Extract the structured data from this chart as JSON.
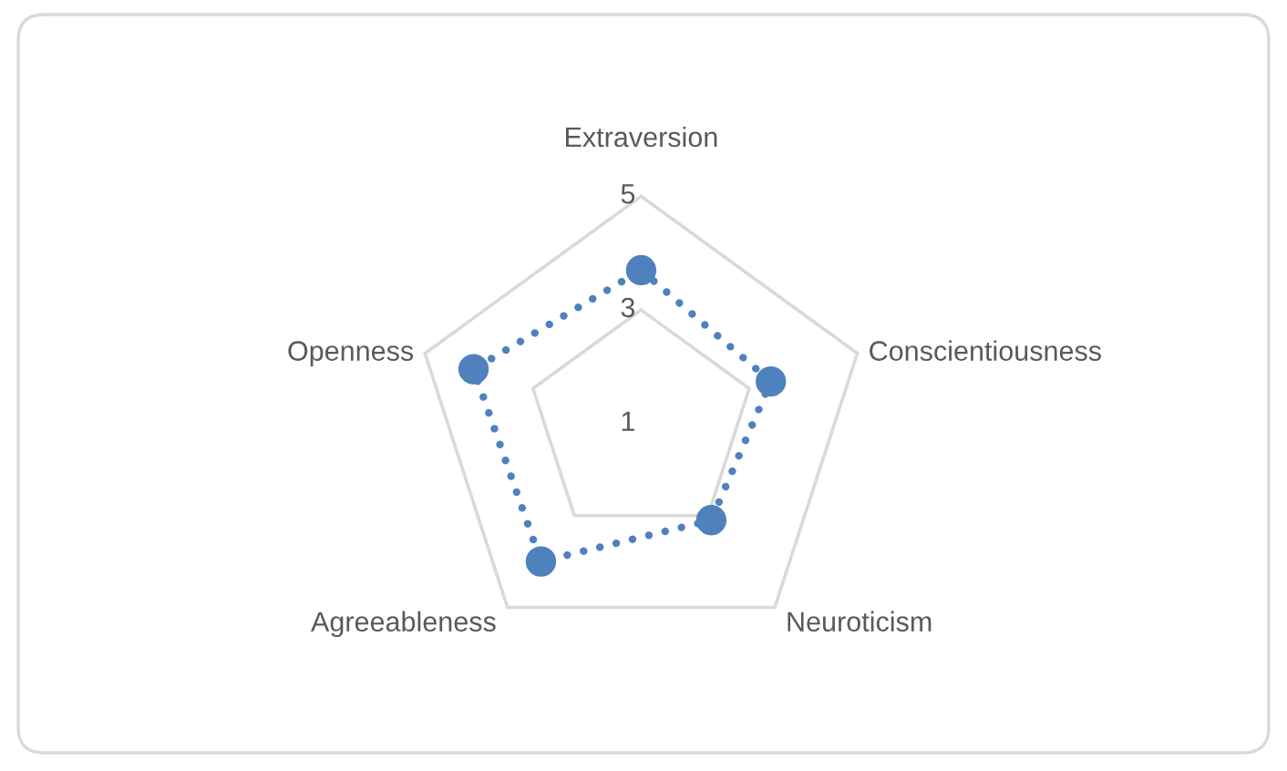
{
  "chart_data": {
    "type": "radar",
    "categories": [
      "Extraversion",
      "Conscientiousness",
      "Neuroticism",
      "Agreeableness",
      "Openness"
    ],
    "series": [
      {
        "color": "#4f81bd",
        "values": [
          3.7,
          3.4,
          3.1,
          4.0,
          4.1
        ]
      }
    ],
    "ylim": [
      1,
      5
    ],
    "yticks": [
      1,
      3,
      5
    ],
    "grid": true,
    "marker": "circle",
    "line_style": "dotted",
    "legend": false
  }
}
